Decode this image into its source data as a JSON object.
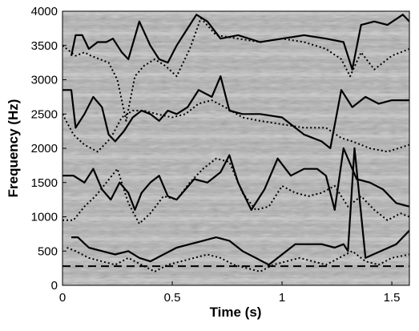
{
  "chart_data": {
    "type": "line",
    "xlabel": "Time (s)",
    "ylabel": "Frequency (Hz)",
    "xlim": [
      0,
      1.58
    ],
    "ylim": [
      0,
      4000
    ],
    "x_ticks": [
      0,
      0.5,
      1,
      1.5
    ],
    "x_tick_labels": [
      "0",
      "0.5",
      "1",
      "1.5"
    ],
    "y_ticks": [
      0,
      500,
      1000,
      1500,
      2000,
      2500,
      3000,
      3500,
      4000
    ],
    "y_tick_labels": [
      "0",
      "500",
      "1000",
      "1500",
      "2000",
      "2500",
      "3000",
      "3500",
      "4000"
    ],
    "background": "spectrogram (grayscale)",
    "grid": false,
    "legend": "none",
    "colors": {
      "line": "#000000",
      "axis": "#000000",
      "background_base": "#b8b8b8"
    },
    "series": [
      {
        "style": "solid",
        "x": [
          0.04,
          0.06,
          0.09,
          0.12,
          0.16,
          0.2,
          0.23,
          0.27,
          0.3,
          0.35,
          0.4,
          0.44,
          0.48,
          0.52,
          0.56,
          0.61,
          0.66,
          0.72,
          0.8,
          0.9,
          1.0,
          1.1,
          1.2,
          1.28,
          1.32,
          1.36,
          1.42,
          1.48,
          1.55,
          1.58
        ],
        "y": [
          3350,
          3650,
          3650,
          3450,
          3550,
          3550,
          3600,
          3400,
          3300,
          3850,
          3500,
          3300,
          3250,
          3500,
          3700,
          3950,
          3850,
          3600,
          3650,
          3550,
          3600,
          3650,
          3600,
          3550,
          3150,
          3800,
          3850,
          3800,
          3950,
          3850
        ]
      },
      {
        "style": "dotted",
        "x": [
          0,
          0.06,
          0.1,
          0.13,
          0.17,
          0.21,
          0.25,
          0.29,
          0.33,
          0.37,
          0.42,
          0.47,
          0.52,
          0.58,
          0.63,
          0.7,
          0.8,
          0.9,
          1.0,
          1.1,
          1.2,
          1.27,
          1.31,
          1.36,
          1.42,
          1.5,
          1.58
        ],
        "y": [
          3500,
          3350,
          3400,
          3350,
          3300,
          3250,
          3000,
          2400,
          3050,
          3200,
          3300,
          3200,
          3050,
          3450,
          3900,
          3650,
          3600,
          3550,
          3600,
          3550,
          3450,
          3300,
          3050,
          3400,
          3150,
          3350,
          3450
        ]
      },
      {
        "style": "solid",
        "x": [
          0,
          0.04,
          0.06,
          0.1,
          0.14,
          0.18,
          0.21,
          0.24,
          0.28,
          0.32,
          0.36,
          0.4,
          0.44,
          0.48,
          0.52,
          0.57,
          0.62,
          0.68,
          0.72,
          0.76,
          0.82,
          0.9,
          1.0,
          1.1,
          1.18,
          1.22,
          1.27,
          1.32,
          1.38,
          1.44,
          1.5,
          1.58
        ],
        "y": [
          2850,
          2850,
          2300,
          2500,
          2750,
          2600,
          2200,
          2100,
          2250,
          2450,
          2550,
          2500,
          2400,
          2550,
          2500,
          2600,
          2850,
          2750,
          3050,
          2550,
          2500,
          2500,
          2450,
          2200,
          2100,
          2000,
          2850,
          2600,
          2750,
          2650,
          2700,
          2700
        ]
      },
      {
        "style": "dotted",
        "x": [
          0,
          0.05,
          0.1,
          0.16,
          0.22,
          0.27,
          0.32,
          0.37,
          0.43,
          0.5,
          0.56,
          0.62,
          0.68,
          0.74,
          0.82,
          0.9,
          1.0,
          1.1,
          1.2,
          1.27,
          1.32,
          1.4,
          1.48,
          1.58
        ],
        "y": [
          2500,
          2200,
          2050,
          1950,
          2150,
          2450,
          2550,
          2550,
          2500,
          2450,
          2500,
          2650,
          2700,
          2600,
          2450,
          2400,
          2350,
          2300,
          2300,
          2150,
          2100,
          2000,
          1950,
          2050
        ]
      },
      {
        "style": "solid",
        "x": [
          0,
          0.05,
          0.1,
          0.14,
          0.18,
          0.22,
          0.26,
          0.3,
          0.33,
          0.36,
          0.4,
          0.44,
          0.48,
          0.52,
          0.56,
          0.6,
          0.66,
          0.72,
          0.76,
          0.8,
          0.86,
          0.92,
          0.98,
          1.04,
          1.1,
          1.16,
          1.2,
          1.24,
          1.28,
          1.34,
          1.4,
          1.46,
          1.52,
          1.58
        ],
        "y": [
          1600,
          1600,
          1500,
          1700,
          1400,
          1250,
          1500,
          1350,
          1100,
          1350,
          1500,
          1600,
          1300,
          1250,
          1400,
          1550,
          1500,
          1650,
          1900,
          1500,
          1100,
          1400,
          1850,
          1600,
          1700,
          1700,
          1600,
          1100,
          2000,
          1550,
          1500,
          1400,
          1200,
          1150
        ]
      },
      {
        "style": "dotted",
        "x": [
          0,
          0.05,
          0.1,
          0.15,
          0.2,
          0.25,
          0.3,
          0.35,
          0.4,
          0.46,
          0.52,
          0.58,
          0.64,
          0.7,
          0.76,
          0.82,
          0.88,
          0.94,
          1.0,
          1.06,
          1.12,
          1.18,
          1.24,
          1.3,
          1.36,
          1.42,
          1.48,
          1.54,
          1.58
        ],
        "y": [
          950,
          950,
          1150,
          1300,
          1500,
          1700,
          1200,
          900,
          1050,
          1300,
          1250,
          1500,
          1700,
          1850,
          1800,
          1350,
          1100,
          1150,
          1450,
          1350,
          1300,
          1350,
          1450,
          1150,
          1300,
          1100,
          950,
          1050,
          1000
        ]
      },
      {
        "style": "solid",
        "x": [
          0.04,
          0.07,
          0.12,
          0.18,
          0.24,
          0.3,
          0.35,
          0.4,
          0.46,
          0.52,
          0.58,
          0.64,
          0.7,
          0.76,
          0.82,
          0.88,
          0.94,
          1.0,
          1.06,
          1.12,
          1.18,
          1.24,
          1.28,
          1.3,
          1.33,
          1.38,
          1.45,
          1.52,
          1.58
        ],
        "y": [
          700,
          700,
          550,
          500,
          450,
          500,
          400,
          350,
          450,
          550,
          600,
          650,
          700,
          650,
          500,
          400,
          300,
          450,
          600,
          600,
          600,
          550,
          600,
          500,
          2000,
          400,
          500,
          600,
          800
        ]
      },
      {
        "style": "dotted",
        "x": [
          0.02,
          0.06,
          0.12,
          0.18,
          0.24,
          0.3,
          0.36,
          0.42,
          0.48,
          0.54,
          0.6,
          0.66,
          0.72,
          0.78,
          0.84,
          0.9,
          0.96,
          1.02,
          1.08,
          1.14,
          1.2,
          1.26,
          1.32,
          1.38,
          1.44,
          1.5,
          1.58
        ],
        "y": [
          550,
          500,
          400,
          350,
          300,
          400,
          300,
          200,
          300,
          350,
          400,
          450,
          400,
          300,
          250,
          200,
          300,
          350,
          400,
          350,
          300,
          400,
          500,
          350,
          300,
          400,
          450
        ]
      },
      {
        "style": "dashed",
        "x": [
          0,
          1.58
        ],
        "y": [
          280,
          280
        ]
      }
    ]
  }
}
